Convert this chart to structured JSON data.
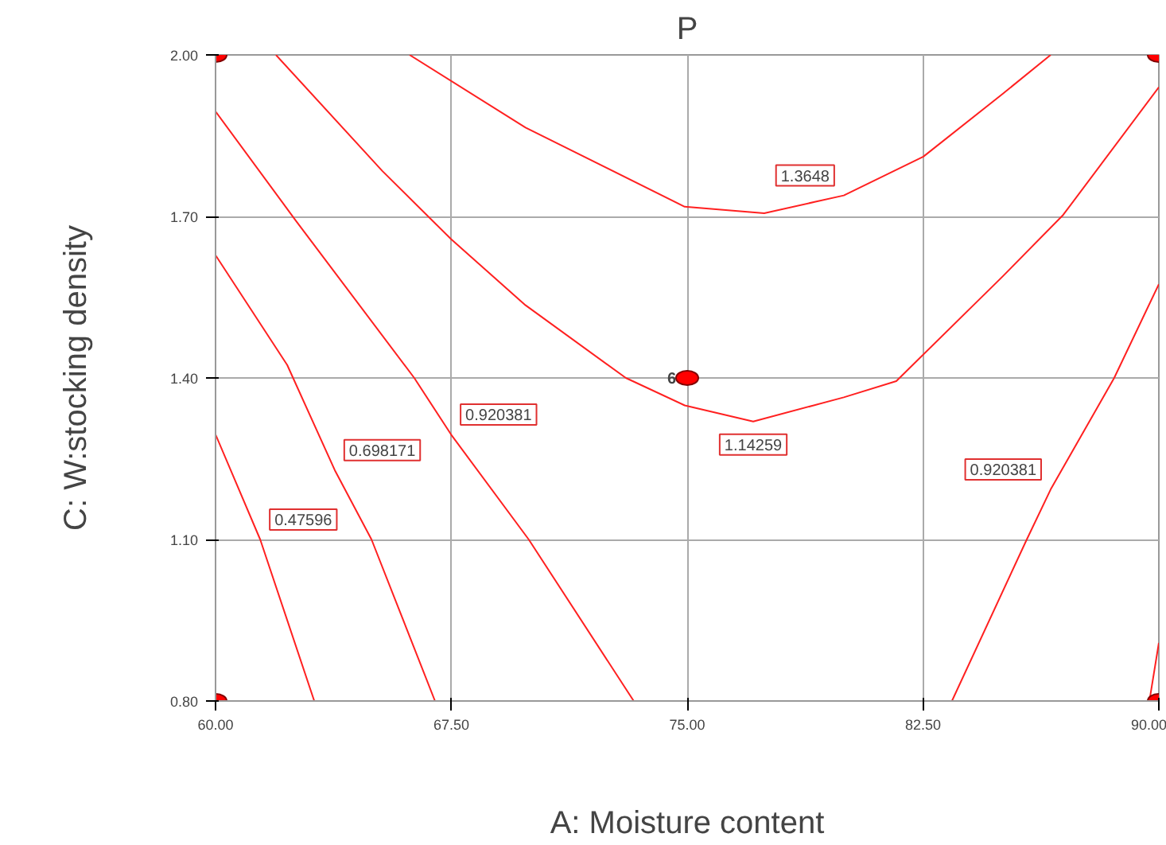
{
  "chart_data": {
    "type": "line",
    "title": "P",
    "xlabel": "A: Moisture content",
    "ylabel": "C: W:stocking density",
    "xlim": [
      60,
      90
    ],
    "ylim": [
      0.8,
      2.0
    ],
    "xticks": [
      {
        "value": 60,
        "label": "60.00"
      },
      {
        "value": 67.5,
        "label": "67.50"
      },
      {
        "value": 75,
        "label": "75.00"
      },
      {
        "value": 82.5,
        "label": "82.50"
      },
      {
        "value": 90,
        "label": "90.00"
      }
    ],
    "yticks": [
      {
        "value": 0.8,
        "label": "0.80"
      },
      {
        "value": 1.1,
        "label": "1.10"
      },
      {
        "value": 1.4,
        "label": "1.40"
      },
      {
        "value": 1.7,
        "label": "1.70"
      },
      {
        "value": 2.0,
        "label": "2.00"
      }
    ],
    "grid": true,
    "marker": "none",
    "line_style": "solid",
    "series": [
      {
        "name": "1.3648",
        "color": "#ff2020",
        "x": [
          66.17,
          69.86,
          74.92,
          77.45,
          79.98,
          82.51,
          85.04,
          86.56
        ],
        "values": [
          2.0,
          1.865,
          1.718,
          1.706,
          1.739,
          1.811,
          1.928,
          2.0
        ]
      },
      {
        "name": "1.14259",
        "color": "#ff2020",
        "x": [
          61.92,
          65.31,
          67.49,
          69.86,
          73.05,
          74.92,
          77.1,
          79.98,
          81.65,
          85.04,
          86.96,
          90.0
        ],
        "values": [
          2.0,
          1.784,
          1.658,
          1.535,
          1.4,
          1.349,
          1.319,
          1.364,
          1.394,
          1.589,
          1.703,
          1.94
        ]
      },
      {
        "name": "0.920381",
        "color": "#ff2020",
        "x": [
          60,
          62.53,
          66.32,
          67.49,
          69.96,
          73.3
        ],
        "values": [
          1.895,
          1.694,
          1.4,
          1.295,
          1.1,
          0.8
        ]
      },
      {
        "name": "0.698171",
        "color": "#ff2020",
        "x": [
          60,
          62.28,
          63.79,
          64.96,
          66.98
        ],
        "values": [
          1.628,
          1.424,
          1.229,
          1.1,
          0.8
        ]
      },
      {
        "name": "0.47596",
        "color": "#ff2020",
        "x": [
          60,
          61.42,
          63.14
        ],
        "values": [
          1.295,
          1.1,
          0.8
        ]
      },
      {
        "name": "0.920381",
        "color": "#ff2020",
        "x": [
          90,
          88.58,
          86.56,
          85.8,
          83.42
        ],
        "values": [
          1.574,
          1.4,
          1.193,
          1.1,
          0.8
        ]
      },
      {
        "color": "#ff2020",
        "x": [
          90,
          89.7
        ],
        "values": [
          0.908,
          0.8
        ]
      },
      {
        "type": "scatter",
        "marker": "circle",
        "color": "#ff0000",
        "x": [
          60,
          90,
          75,
          60,
          90
        ],
        "values": [
          2.0,
          2.0,
          1.4,
          0.8,
          0.8
        ]
      }
    ],
    "annotations": [
      {
        "text": "6",
        "x": 75,
        "y": 1.4
      }
    ]
  }
}
